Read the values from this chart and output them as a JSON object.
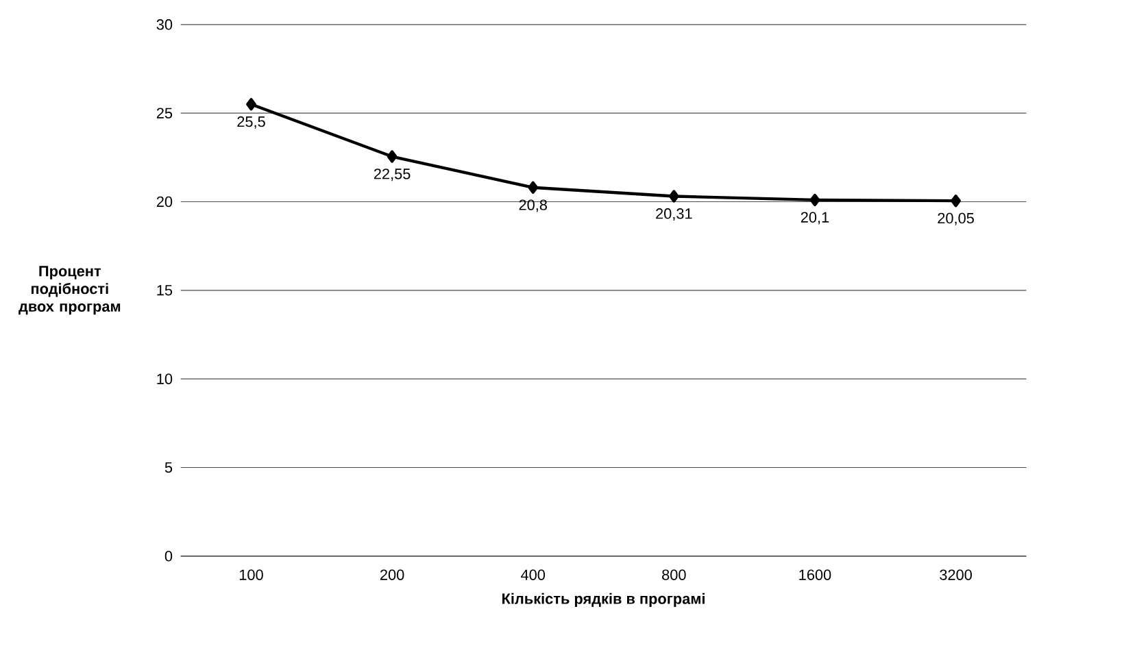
{
  "chart_data": {
    "type": "line",
    "categories": [
      "100",
      "200",
      "400",
      "800",
      "1600",
      "3200"
    ],
    "series": [
      {
        "color": "#000000",
        "values": [
          25.5,
          22.55,
          20.8,
          20.31,
          20.1,
          20.05
        ],
        "value_labels": [
          "25,5",
          "22,55",
          "20,8",
          "20,31",
          "20,1",
          "20,05"
        ]
      }
    ],
    "xlabel": "Кількість рядків в програмі",
    "ylabel": "Процент подібності двох програм",
    "ylim": [
      0,
      30
    ],
    "yticks": [
      0,
      5,
      10,
      15,
      20,
      25,
      30
    ],
    "grid": "y",
    "marker": "diamond",
    "line_style": "solid"
  }
}
